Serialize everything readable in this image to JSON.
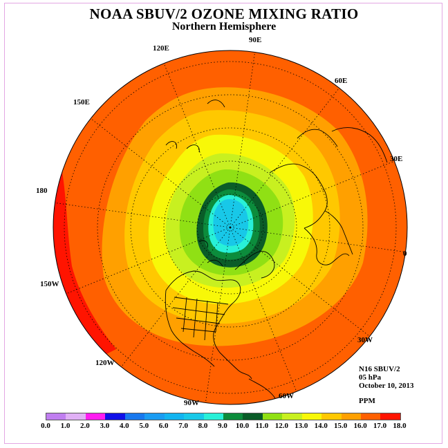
{
  "title": "NOAA SBUV/2 OZONE MIXING RATIO",
  "subtitle": "Northern Hemisphere",
  "longitude_labels": [
    "90E",
    "60E",
    "30E",
    "0",
    "30W",
    "60W",
    "90W",
    "120W",
    "150W",
    "180",
    "150E",
    "120E"
  ],
  "info": {
    "satellite": "N16 SBUV/2",
    "pressure": "05 hPa",
    "date": "October 10, 2013",
    "units": "PPM"
  },
  "colorbar": {
    "ticks": [
      "0.0",
      "1.0",
      "2.0",
      "3.0",
      "4.0",
      "5.0",
      "6.0",
      "7.0",
      "8.0",
      "9.0",
      "10.0",
      "11.0",
      "12.0",
      "13.0",
      "14.0",
      "15.0",
      "16.0",
      "17.0",
      "18.0"
    ],
    "colors": [
      "#c07ef0",
      "#e0b0f5",
      "#ff1cf0",
      "#1010e8",
      "#1878ee",
      "#1a9cf2",
      "#12b4f0",
      "#18c8e8",
      "#28f0d8",
      "#0c8c3c",
      "#0a5c28",
      "#90e014",
      "#c8f020",
      "#f8f808",
      "#ffc800",
      "#ffa000",
      "#ff6000",
      "#ff1400",
      "#8a5a3c"
    ]
  }
}
